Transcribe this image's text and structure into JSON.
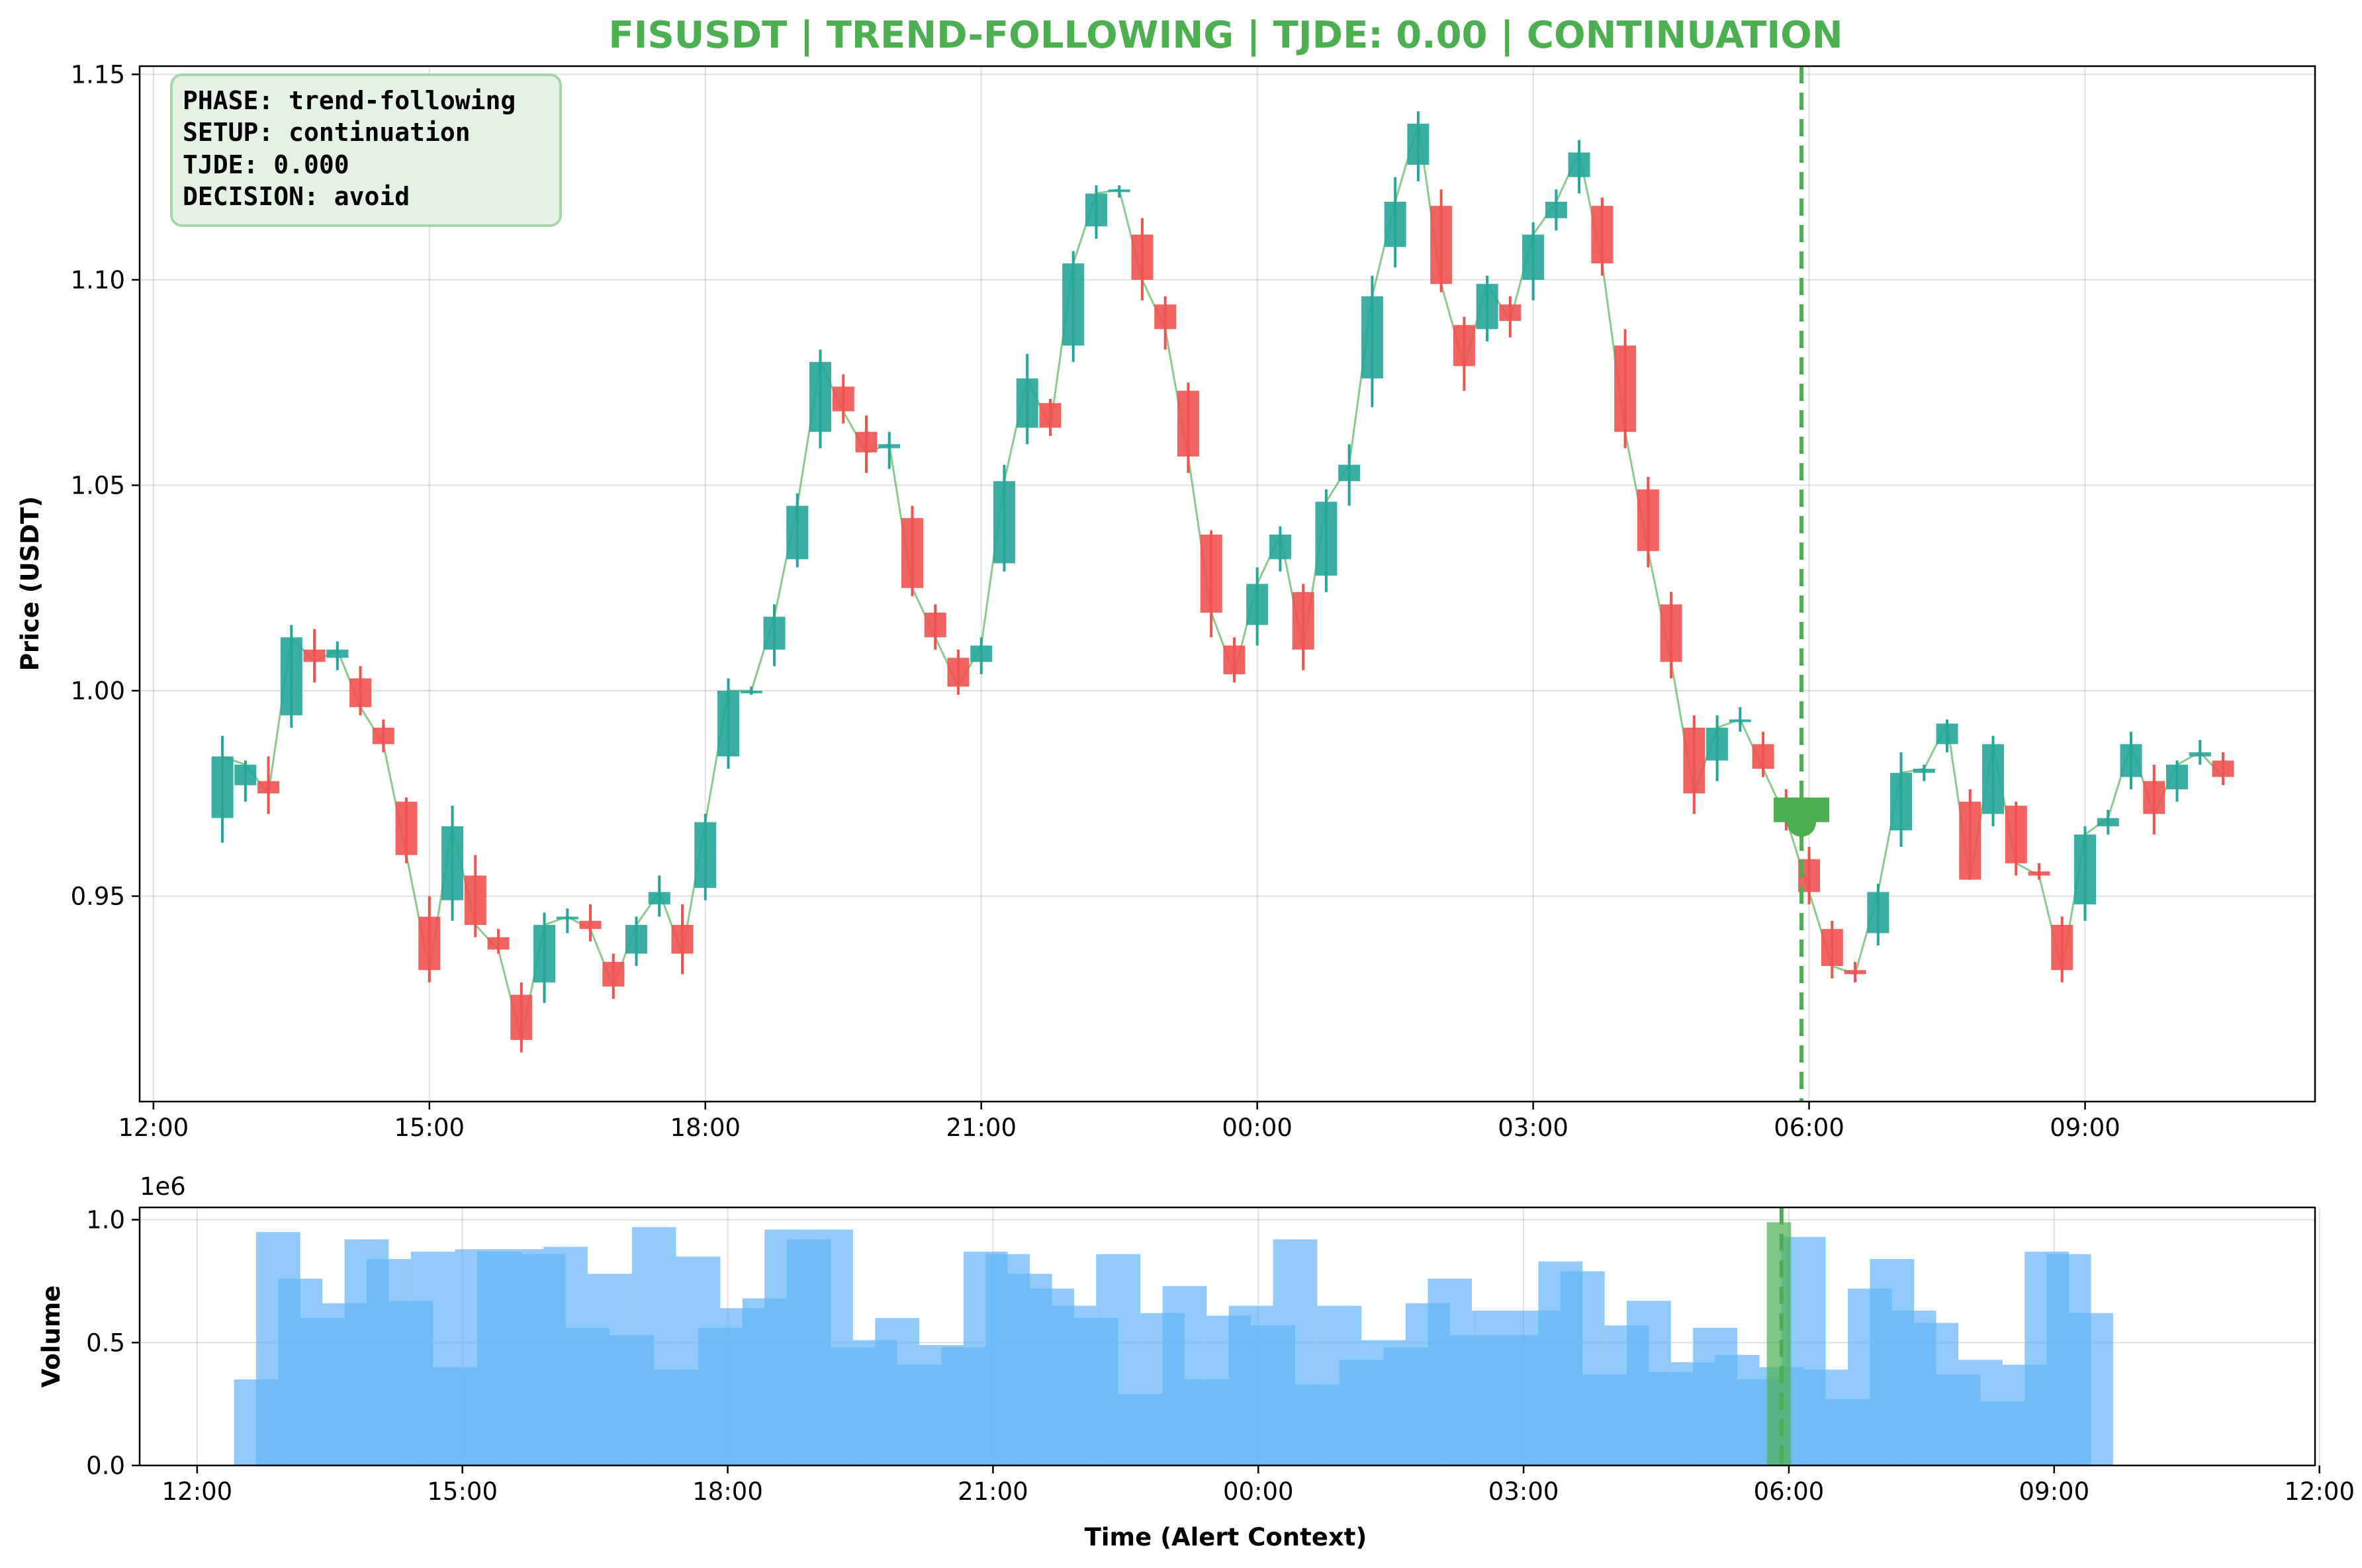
{
  "title": "FISUSDT | TREND-FOLLOWING | TJDE: 0.00 | CONTINUATION",
  "colors": {
    "title": "#4caf50",
    "up": "#26a69a",
    "down": "#ef5350",
    "close_line": "#4caf50",
    "alert": "#4caf50",
    "volume": "#64b5f6",
    "volume_alert": "#4caf50",
    "info_box_bg": "#e3f2e3",
    "info_box_border": "#a5d6a7"
  },
  "info_box": {
    "phase": "PHASE: trend-following",
    "setup": "SETUP: continuation",
    "tjde": "TJDE: 0.000",
    "decision": "DECISION: avoid"
  },
  "chart_data": [
    {
      "type": "candlestick",
      "ylabel": "Price (USDT)",
      "ylim": [
        0.9,
        1.152
      ],
      "y_ticks": [
        "0.95",
        "1.00",
        "1.05",
        "1.10",
        "1.15"
      ],
      "x_tick_labels": [
        "12:00",
        "15:00",
        "18:00",
        "21:00",
        "00:00",
        "03:00",
        "06:00",
        "09:00"
      ],
      "x_ticks_hours": [
        0,
        3,
        6,
        9,
        12,
        15,
        18,
        21
      ],
      "xlim_hours": [
        -0.15,
        23.5
      ],
      "grid": true,
      "candle_interval_minutes": 30,
      "first_candle_time": "12:45",
      "alert_time": "05:55",
      "alert_price": 0.968,
      "candles": [
        {
          "time": "12:45",
          "o": 0.969,
          "h": 0.989,
          "l": 0.963,
          "c": 0.984
        },
        {
          "time": "13:00",
          "o": 0.977,
          "h": 0.983,
          "l": 0.973,
          "c": 0.982
        },
        {
          "time": "13:15",
          "o": 0.978,
          "h": 0.984,
          "l": 0.97,
          "c": 0.975
        },
        {
          "time": "13:30",
          "o": 0.994,
          "h": 1.016,
          "l": 0.991,
          "c": 1.013
        },
        {
          "time": "13:45",
          "o": 1.01,
          "h": 1.015,
          "l": 1.002,
          "c": 1.007
        },
        {
          "time": "14:00",
          "o": 1.008,
          "h": 1.012,
          "l": 1.005,
          "c": 1.01
        },
        {
          "time": "14:15",
          "o": 1.003,
          "h": 1.006,
          "l": 0.994,
          "c": 0.996
        },
        {
          "time": "14:30",
          "o": 0.991,
          "h": 0.993,
          "l": 0.985,
          "c": 0.987
        },
        {
          "time": "14:45",
          "o": 0.973,
          "h": 0.974,
          "l": 0.958,
          "c": 0.96
        },
        {
          "time": "15:00",
          "o": 0.945,
          "h": 0.95,
          "l": 0.929,
          "c": 0.932
        },
        {
          "time": "15:15",
          "o": 0.949,
          "h": 0.972,
          "l": 0.944,
          "c": 0.967
        },
        {
          "time": "15:30",
          "o": 0.955,
          "h": 0.96,
          "l": 0.94,
          "c": 0.943
        },
        {
          "time": "15:45",
          "o": 0.94,
          "h": 0.942,
          "l": 0.936,
          "c": 0.937
        },
        {
          "time": "16:00",
          "o": 0.926,
          "h": 0.929,
          "l": 0.912,
          "c": 0.915
        },
        {
          "time": "16:15",
          "o": 0.929,
          "h": 0.946,
          "l": 0.924,
          "c": 0.943
        },
        {
          "time": "16:30",
          "o": 0.945,
          "h": 0.947,
          "l": 0.941,
          "c": 0.945
        },
        {
          "time": "16:45",
          "o": 0.944,
          "h": 0.948,
          "l": 0.939,
          "c": 0.942
        },
        {
          "time": "17:00",
          "o": 0.934,
          "h": 0.936,
          "l": 0.925,
          "c": 0.928
        },
        {
          "time": "17:15",
          "o": 0.936,
          "h": 0.945,
          "l": 0.933,
          "c": 0.943
        },
        {
          "time": "17:30",
          "o": 0.948,
          "h": 0.955,
          "l": 0.945,
          "c": 0.951
        },
        {
          "time": "17:45",
          "o": 0.943,
          "h": 0.948,
          "l": 0.931,
          "c": 0.936
        },
        {
          "time": "18:00",
          "o": 0.952,
          "h": 0.97,
          "l": 0.949,
          "c": 0.968
        },
        {
          "time": "18:15",
          "o": 0.984,
          "h": 1.003,
          "l": 0.981,
          "c": 1.0
        },
        {
          "time": "18:30",
          "o": 1.0,
          "h": 1.001,
          "l": 0.999,
          "c": 1.0
        },
        {
          "time": "18:45",
          "o": 1.01,
          "h": 1.021,
          "l": 1.006,
          "c": 1.018
        },
        {
          "time": "19:00",
          "o": 1.032,
          "h": 1.048,
          "l": 1.03,
          "c": 1.045
        },
        {
          "time": "19:15",
          "o": 1.063,
          "h": 1.083,
          "l": 1.059,
          "c": 1.08
        },
        {
          "time": "19:30",
          "o": 1.074,
          "h": 1.077,
          "l": 1.065,
          "c": 1.068
        },
        {
          "time": "19:45",
          "o": 1.063,
          "h": 1.067,
          "l": 1.053,
          "c": 1.058
        },
        {
          "time": "20:00",
          "o": 1.059,
          "h": 1.063,
          "l": 1.054,
          "c": 1.06
        },
        {
          "time": "20:15",
          "o": 1.042,
          "h": 1.045,
          "l": 1.023,
          "c": 1.025
        },
        {
          "time": "20:30",
          "o": 1.019,
          "h": 1.021,
          "l": 1.01,
          "c": 1.013
        },
        {
          "time": "20:45",
          "o": 1.008,
          "h": 1.01,
          "l": 0.999,
          "c": 1.001
        },
        {
          "time": "21:00",
          "o": 1.007,
          "h": 1.013,
          "l": 1.004,
          "c": 1.011
        },
        {
          "time": "21:15",
          "o": 1.031,
          "h": 1.055,
          "l": 1.029,
          "c": 1.051
        },
        {
          "time": "21:30",
          "o": 1.064,
          "h": 1.082,
          "l": 1.06,
          "c": 1.076
        },
        {
          "time": "21:45",
          "o": 1.07,
          "h": 1.071,
          "l": 1.062,
          "c": 1.064
        },
        {
          "time": "22:00",
          "o": 1.084,
          "h": 1.107,
          "l": 1.08,
          "c": 1.104
        },
        {
          "time": "22:15",
          "o": 1.113,
          "h": 1.123,
          "l": 1.11,
          "c": 1.121
        },
        {
          "time": "22:30",
          "o": 1.122,
          "h": 1.123,
          "l": 1.12,
          "c": 1.122
        },
        {
          "time": "22:45",
          "o": 1.111,
          "h": 1.115,
          "l": 1.095,
          "c": 1.1
        },
        {
          "time": "23:00",
          "o": 1.094,
          "h": 1.096,
          "l": 1.083,
          "c": 1.088
        },
        {
          "time": "23:15",
          "o": 1.073,
          "h": 1.075,
          "l": 1.053,
          "c": 1.057
        },
        {
          "time": "23:30",
          "o": 1.038,
          "h": 1.039,
          "l": 1.013,
          "c": 1.019
        },
        {
          "time": "23:45",
          "o": 1.011,
          "h": 1.013,
          "l": 1.002,
          "c": 1.004
        },
        {
          "time": "00:00",
          "o": 1.016,
          "h": 1.03,
          "l": 1.011,
          "c": 1.026
        },
        {
          "time": "00:15",
          "o": 1.032,
          "h": 1.04,
          "l": 1.029,
          "c": 1.038
        },
        {
          "time": "00:30",
          "o": 1.024,
          "h": 1.026,
          "l": 1.005,
          "c": 1.01
        },
        {
          "time": "00:45",
          "o": 1.028,
          "h": 1.049,
          "l": 1.024,
          "c": 1.046
        },
        {
          "time": "01:00",
          "o": 1.051,
          "h": 1.06,
          "l": 1.045,
          "c": 1.055
        },
        {
          "time": "01:15",
          "o": 1.076,
          "h": 1.101,
          "l": 1.069,
          "c": 1.096
        },
        {
          "time": "01:30",
          "o": 1.108,
          "h": 1.125,
          "l": 1.103,
          "c": 1.119
        },
        {
          "time": "01:45",
          "o": 1.128,
          "h": 1.141,
          "l": 1.124,
          "c": 1.138
        },
        {
          "time": "02:00",
          "o": 1.118,
          "h": 1.122,
          "l": 1.097,
          "c": 1.099
        },
        {
          "time": "02:15",
          "o": 1.089,
          "h": 1.091,
          "l": 1.073,
          "c": 1.079
        },
        {
          "time": "02:30",
          "o": 1.088,
          "h": 1.101,
          "l": 1.085,
          "c": 1.099
        },
        {
          "time": "02:45",
          "o": 1.094,
          "h": 1.096,
          "l": 1.086,
          "c": 1.09
        },
        {
          "time": "03:00",
          "o": 1.1,
          "h": 1.114,
          "l": 1.095,
          "c": 1.111
        },
        {
          "time": "03:15",
          "o": 1.115,
          "h": 1.122,
          "l": 1.112,
          "c": 1.119
        },
        {
          "time": "03:30",
          "o": 1.125,
          "h": 1.134,
          "l": 1.121,
          "c": 1.131
        },
        {
          "time": "03:45",
          "o": 1.118,
          "h": 1.12,
          "l": 1.101,
          "c": 1.104
        },
        {
          "time": "04:00",
          "o": 1.084,
          "h": 1.088,
          "l": 1.059,
          "c": 1.063
        },
        {
          "time": "04:15",
          "o": 1.049,
          "h": 1.052,
          "l": 1.03,
          "c": 1.034
        },
        {
          "time": "04:30",
          "o": 1.021,
          "h": 1.024,
          "l": 1.003,
          "c": 1.007
        },
        {
          "time": "04:45",
          "o": 0.991,
          "h": 0.994,
          "l": 0.97,
          "c": 0.975
        },
        {
          "time": "05:00",
          "o": 0.983,
          "h": 0.994,
          "l": 0.978,
          "c": 0.991
        },
        {
          "time": "05:15",
          "o": 0.993,
          "h": 0.996,
          "l": 0.99,
          "c": 0.993
        },
        {
          "time": "05:30",
          "o": 0.987,
          "h": 0.99,
          "l": 0.979,
          "c": 0.981
        },
        {
          "time": "05:45",
          "o": 0.974,
          "h": 0.976,
          "l": 0.966,
          "c": 0.969
        },
        {
          "time": "06:00",
          "o": 0.959,
          "h": 0.962,
          "l": 0.948,
          "c": 0.951
        },
        {
          "time": "06:15",
          "o": 0.942,
          "h": 0.944,
          "l": 0.93,
          "c": 0.933
        },
        {
          "time": "06:30",
          "o": 0.932,
          "h": 0.934,
          "l": 0.929,
          "c": 0.931
        },
        {
          "time": "06:45",
          "o": 0.941,
          "h": 0.953,
          "l": 0.938,
          "c": 0.951
        },
        {
          "time": "07:00",
          "o": 0.966,
          "h": 0.985,
          "l": 0.962,
          "c": 0.98
        },
        {
          "time": "07:15",
          "o": 0.98,
          "h": 0.982,
          "l": 0.978,
          "c": 0.981
        },
        {
          "time": "07:30",
          "o": 0.987,
          "h": 0.993,
          "l": 0.985,
          "c": 0.992
        },
        {
          "time": "07:45",
          "o": 0.973,
          "h": 0.976,
          "l": 0.954,
          "c": 0.954
        },
        {
          "time": "08:00",
          "o": 0.97,
          "h": 0.989,
          "l": 0.967,
          "c": 0.987
        },
        {
          "time": "08:15",
          "o": 0.972,
          "h": 0.973,
          "l": 0.955,
          "c": 0.958
        },
        {
          "time": "08:30",
          "o": 0.956,
          "h": 0.958,
          "l": 0.954,
          "c": 0.955
        },
        {
          "time": "08:45",
          "o": 0.943,
          "h": 0.945,
          "l": 0.929,
          "c": 0.932
        },
        {
          "time": "09:00",
          "o": 0.948,
          "h": 0.967,
          "l": 0.944,
          "c": 0.965
        },
        {
          "time": "09:15",
          "o": 0.967,
          "h": 0.971,
          "l": 0.965,
          "c": 0.969
        },
        {
          "time": "09:30",
          "o": 0.979,
          "h": 0.99,
          "l": 0.976,
          "c": 0.987
        },
        {
          "time": "09:45",
          "o": 0.978,
          "h": 0.982,
          "l": 0.965,
          "c": 0.97
        },
        {
          "time": "10:00",
          "o": 0.976,
          "h": 0.983,
          "l": 0.973,
          "c": 0.982
        },
        {
          "time": "10:15",
          "o": 0.984,
          "h": 0.988,
          "l": 0.982,
          "c": 0.985
        },
        {
          "time": "10:30",
          "o": 0.983,
          "h": 0.985,
          "l": 0.977,
          "c": 0.979
        }
      ]
    },
    {
      "type": "bar",
      "ylabel": "Volume",
      "xlabel": "Time (Alert Context)",
      "y_scale_label": "1e6",
      "y_ticks": [
        "0.0",
        "0.5",
        "1.0"
      ],
      "ylim": [
        0,
        1.05
      ],
      "x_tick_labels": [
        "12:00",
        "15:00",
        "18:00",
        "21:00",
        "00:00",
        "03:00",
        "06:00",
        "09:00",
        "12:00"
      ],
      "x_ticks_hours": [
        0,
        3,
        6,
        9,
        12,
        15,
        18,
        21,
        24
      ],
      "xlim_hours": [
        -0.65,
        23.95
      ],
      "grid": true,
      "bar_width_minutes": 30,
      "first_bar_time": "12:25",
      "values_millions": [
        0.35,
        0.95,
        0.76,
        0.6,
        0.66,
        0.92,
        0.84,
        0.67,
        0.87,
        0.4,
        0.88,
        0.87,
        0.88,
        0.86,
        0.89,
        0.56,
        0.78,
        0.53,
        0.97,
        0.39,
        0.85,
        0.56,
        0.64,
        0.68,
        0.96,
        0.92,
        0.96,
        0.48,
        0.51,
        0.6,
        0.41,
        0.49,
        0.48,
        0.87,
        0.86,
        0.78,
        0.72,
        0.65,
        0.6,
        0.86,
        0.29,
        0.62,
        0.73,
        0.35,
        0.61,
        0.65,
        0.57,
        0.92,
        0.33,
        0.65,
        0.43,
        0.51,
        0.48,
        0.66,
        0.76,
        0.53,
        0.63,
        0.53,
        0.63,
        0.83,
        0.79,
        0.37,
        0.57,
        0.67,
        0.38,
        0.42,
        0.56,
        0.45,
        0.35,
        0.4,
        0.93,
        0.39,
        0.27,
        0.72,
        0.84,
        0.63,
        0.58,
        0.37,
        0.43,
        0.26,
        0.41,
        0.87,
        0.86,
        0.62
      ],
      "alert_time": "05:55",
      "alert_bar_value_millions": 0.99
    }
  ]
}
